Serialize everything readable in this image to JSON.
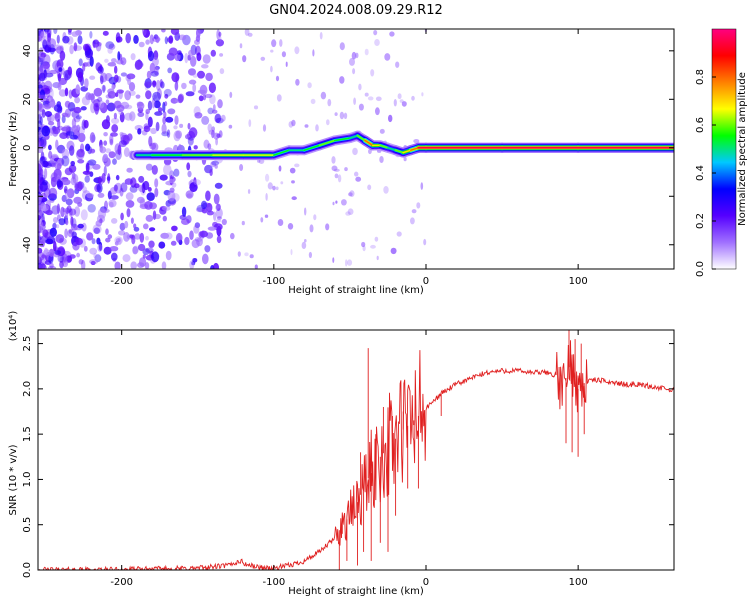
{
  "title": "GN04.2024.008.09.29.R12",
  "chart_data": [
    {
      "type": "heatmap",
      "title": "GN04.2024.008.09.29.R12",
      "xlabel": "Height of straight line (km)",
      "ylabel": "Frequency (Hz)",
      "xlim": [
        -255,
        163
      ],
      "ylim": [
        -50,
        49
      ],
      "x_ticks": [
        -200,
        -100,
        0,
        100
      ],
      "x_tick_labels": [
        "-200",
        "-100",
        "0",
        "100"
      ],
      "y_ticks": [
        -40,
        -20,
        0,
        20,
        40
      ],
      "y_tick_labels": [
        "-40",
        "-20",
        "0",
        "20",
        "40"
      ],
      "colorbar": {
        "label": "Normalized spectral amplitude",
        "range": [
          0,
          1
        ],
        "ticks": [
          0.0,
          0.2,
          0.4,
          0.6,
          0.8
        ],
        "tick_labels": [
          "0.0",
          "0.2",
          "0.4",
          "0.6",
          "0.8"
        ],
        "colors": [
          "#ffffff",
          "#a070ff",
          "#5500ff",
          "#0000ff",
          "#00c8ff",
          "#00ff00",
          "#ffff00",
          "#ff8000",
          "#ff0000",
          "#ff0080"
        ]
      },
      "ridge": {
        "x": [
          -190,
          -180,
          -160,
          -140,
          -120,
          -100,
          -90,
          -80,
          -70,
          -60,
          -50,
          -45,
          -40,
          -35,
          -30,
          -25,
          -20,
          -15,
          -10,
          -5,
          0,
          50,
          100,
          163
        ],
        "frequency": [
          -3,
          -3,
          -3,
          -3,
          -3,
          -3,
          -1,
          -1,
          1,
          3,
          4,
          5,
          3,
          1,
          1,
          0,
          -1,
          -2,
          -1,
          0,
          0,
          0,
          0,
          0
        ],
        "amplitude": [
          0.45,
          0.5,
          0.55,
          0.6,
          0.65,
          0.65,
          0.55,
          0.5,
          0.55,
          0.6,
          0.55,
          0.5,
          0.6,
          0.8,
          0.7,
          0.6,
          0.5,
          0.6,
          0.7,
          0.8,
          0.95,
          0.95,
          0.95,
          0.95
        ]
      }
    },
    {
      "type": "line",
      "xlabel": "Height of straight line (km)",
      "ylabel": "SNR (10 * v/v)",
      "y_multiplier": "(x10⁴)",
      "xlim": [
        -255,
        163
      ],
      "ylim": [
        0,
        2.65
      ],
      "x_ticks": [
        -200,
        -100,
        0,
        100
      ],
      "x_tick_labels": [
        "-200",
        "-100",
        "0",
        "100"
      ],
      "y_ticks": [
        0,
        0.5,
        1.0,
        1.5,
        2.0,
        2.5
      ],
      "y_tick_labels": [
        "0.0",
        "0.5",
        "1.0",
        "1.5",
        "2.0",
        "2.5"
      ],
      "color": "#e02020",
      "series": [
        {
          "x": [
            -255,
            -220,
            -180,
            -150,
            -130,
            -122,
            -118,
            -110,
            -100,
            -90,
            -80,
            -70,
            -60,
            -55,
            -50,
            -45,
            -40,
            -35,
            -30,
            -25,
            -20,
            -15,
            -10,
            -5,
            0,
            10,
            20,
            30,
            40,
            50,
            60,
            70,
            80,
            85,
            88,
            90,
            95,
            100,
            105,
            110,
            120,
            130,
            140,
            150,
            163
          ],
          "y": [
            0.0,
            0.0,
            0.01,
            0.02,
            0.05,
            0.1,
            0.06,
            0.03,
            0.02,
            0.05,
            0.1,
            0.2,
            0.35,
            0.5,
            0.6,
            0.75,
            0.95,
            1.1,
            1.25,
            1.35,
            1.45,
            1.55,
            1.62,
            1.7,
            1.78,
            1.95,
            2.05,
            2.12,
            2.18,
            2.2,
            2.2,
            2.18,
            2.18,
            2.15,
            2.05,
            2.0,
            2.3,
            2.0,
            2.08,
            2.1,
            2.08,
            2.05,
            2.05,
            2.02,
            1.98
          ]
        }
      ],
      "spikes": [
        {
          "x": -57,
          "y": 0.0
        },
        {
          "x": -55,
          "y": 0.4
        },
        {
          "x": -52,
          "y": 0.1
        },
        {
          "x": -48,
          "y": 0.6
        },
        {
          "x": -45,
          "y": 0.05
        },
        {
          "x": -43,
          "y": 1.3
        },
        {
          "x": -41,
          "y": 0.2
        },
        {
          "x": -38,
          "y": 2.45
        },
        {
          "x": -36,
          "y": 0.1
        },
        {
          "x": -33,
          "y": 1.5
        },
        {
          "x": -30,
          "y": 0.3
        },
        {
          "x": -28,
          "y": 1.8
        },
        {
          "x": -25,
          "y": 0.2
        },
        {
          "x": -22,
          "y": 1.7
        },
        {
          "x": -20,
          "y": 0.6
        },
        {
          "x": -15,
          "y": 1.75
        },
        {
          "x": -12,
          "y": 0.9
        },
        {
          "x": -8,
          "y": 1.6
        },
        {
          "x": -5,
          "y": 0.9
        },
        {
          "x": 10,
          "y": 1.7
        },
        {
          "x": 92,
          "y": 1.4
        },
        {
          "x": 94,
          "y": 2.65
        },
        {
          "x": 96,
          "y": 1.3
        },
        {
          "x": 98,
          "y": 2.55
        },
        {
          "x": 100,
          "y": 1.25
        },
        {
          "x": 102,
          "y": 2.5
        },
        {
          "x": 104,
          "y": 1.5
        }
      ]
    }
  ]
}
